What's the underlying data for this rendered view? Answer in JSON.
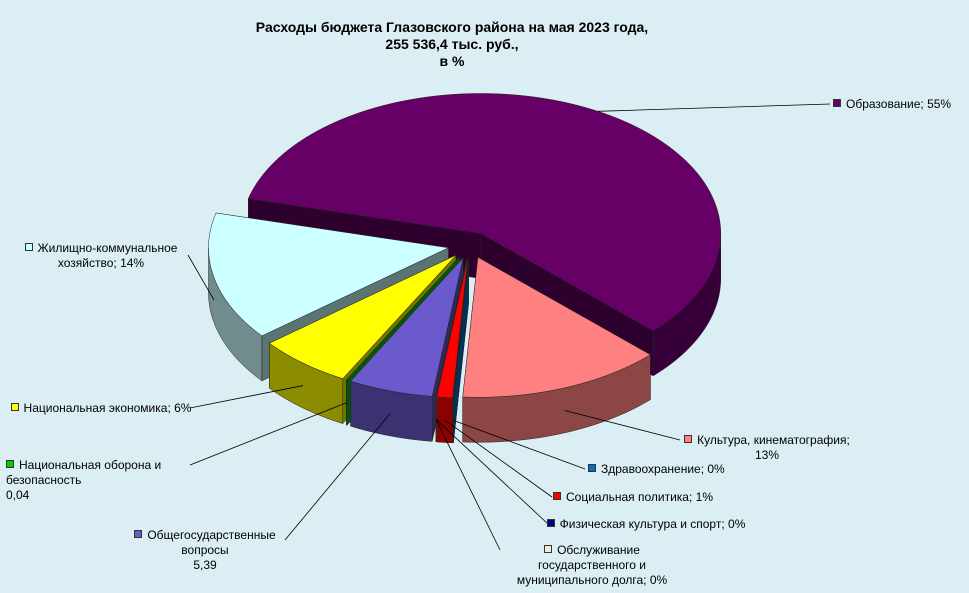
{
  "chart_data": {
    "type": "pie",
    "title": [
      "Расходы бюджета Глазовского района на мая 2023 года,",
      "255 536,4 тыс. руб.,",
      "в %"
    ],
    "categories": [
      "Образование",
      "Культура, кинематография",
      "Здравоохранение",
      "Социальная  политика",
      "Физическая культура  и спорт",
      "Обслуживание государственного  и муниципального  долга",
      "Общегосударственные вопросы",
      "Национальная  оборона  и безопасность",
      "Национальная  экономика",
      "Жилищно-коммунальное хозяйство"
    ],
    "values": [
      55,
      13,
      0,
      1,
      0,
      0,
      5.39,
      0.04,
      6,
      14
    ],
    "value_labels": [
      "55%",
      "13%",
      "0%",
      "1%",
      "0%",
      "0%",
      "5,39",
      "0,04",
      "6%",
      "14%"
    ],
    "colors": [
      "#660066",
      "#ff8080",
      "#0070c0",
      "#ff0000",
      "#000080",
      "#eeeecc",
      "#6a5acd",
      "#00cc00",
      "#ffff00",
      "#ccffff"
    ]
  }
}
